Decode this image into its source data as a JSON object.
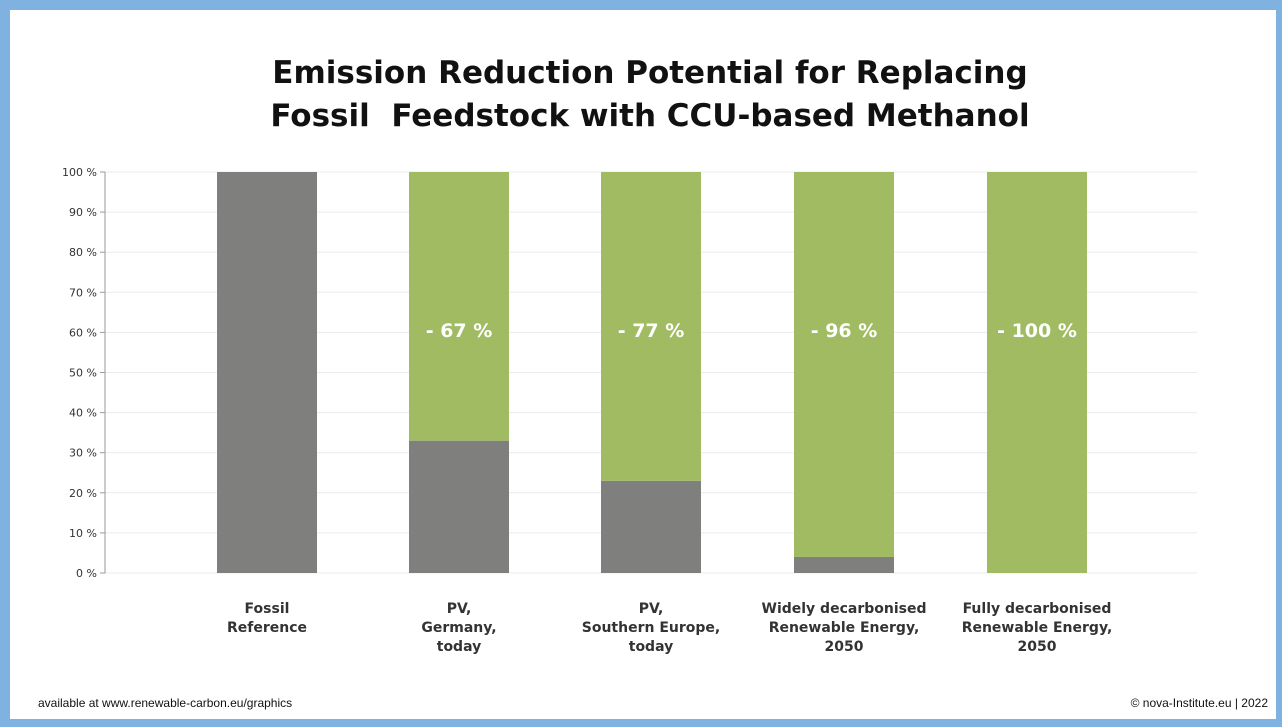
{
  "chart_data": {
    "type": "stacked_bar",
    "title": "Emission Reduction Potential for Replacing\nFossil  Feedstock with CCU-based Methanol",
    "categories": [
      "Fossil\nReference",
      "PV,\nGermany,\ntoday",
      "PV,\nSouthern Europe,\ntoday",
      "Widely decarbonised\nRenewable Energy,\n2050",
      "Fully decarbonised\nRenewable Energy,\n2050"
    ],
    "series": [
      {
        "color": "#7f7f7e",
        "values": [
          100,
          33,
          23,
          4,
          0
        ]
      },
      {
        "color": "#a1bb63",
        "values": [
          0,
          67,
          77,
          96,
          100
        ],
        "value_labels": [
          null,
          "- 67 %",
          "- 77 %",
          "- 96 %",
          "- 100 %"
        ]
      }
    ],
    "ylim": [
      0,
      100
    ],
    "yticks": [
      {
        "value": 0,
        "label": "0 %"
      },
      {
        "value": 10,
        "label": "10 %"
      },
      {
        "value": 20,
        "label": "20 %"
      },
      {
        "value": 30,
        "label": "30 %"
      },
      {
        "value": 40,
        "label": "40 %"
      },
      {
        "value": 50,
        "label": "50 %"
      },
      {
        "value": 60,
        "label": "60 %"
      },
      {
        "value": 70,
        "label": "70 %"
      },
      {
        "value": 80,
        "label": "80 %"
      },
      {
        "value": 90,
        "label": "90 %"
      },
      {
        "value": 100,
        "label": "100 %"
      }
    ],
    "grid": true,
    "footer_left": "available at www.renewable-carbon.eu/graphics",
    "footer_right": "© nova-Institute.eu | 2022"
  }
}
